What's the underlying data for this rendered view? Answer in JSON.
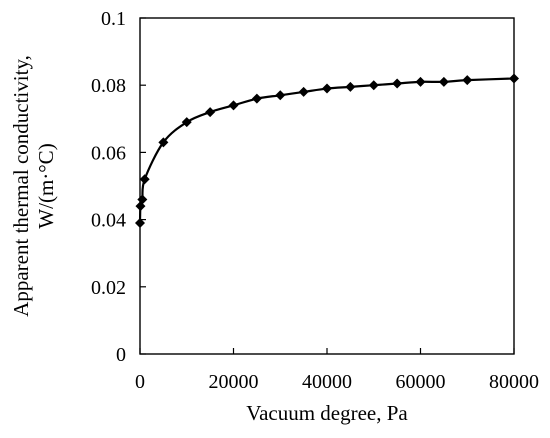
{
  "chart_data": {
    "type": "line",
    "xlabel": "Vacuum degree, Pa",
    "ylabel_lines": [
      "Apparent thermal conductivity,",
      "W/(m·°C)"
    ],
    "xlim": [
      0,
      80000
    ],
    "ylim": [
      0,
      0.1
    ],
    "xticks": [
      0,
      20000,
      40000,
      60000,
      80000
    ],
    "xtick_labels": [
      "0",
      "20000",
      "40000",
      "60000",
      "80000"
    ],
    "yticks": [
      0,
      0.02,
      0.04,
      0.06,
      0.08,
      0.1
    ],
    "ytick_labels": [
      "0",
      "0.02",
      "0.04",
      "0.06",
      "0.08",
      "0.1"
    ],
    "grid": false,
    "legend": "none",
    "marker": "diamond",
    "line_color": "#000000",
    "series": [
      {
        "x": [
          0,
          100,
          500,
          1000,
          5000,
          10000,
          15000,
          20000,
          25000,
          30000,
          35000,
          40000,
          45000,
          50000,
          55000,
          60000,
          65000,
          70000,
          80000
        ],
        "y": [
          0.039,
          0.044,
          0.046,
          0.052,
          0.063,
          0.069,
          0.072,
          0.074,
          0.076,
          0.077,
          0.078,
          0.079,
          0.0795,
          0.08,
          0.0805,
          0.081,
          0.081,
          0.0815,
          0.082
        ]
      }
    ]
  }
}
